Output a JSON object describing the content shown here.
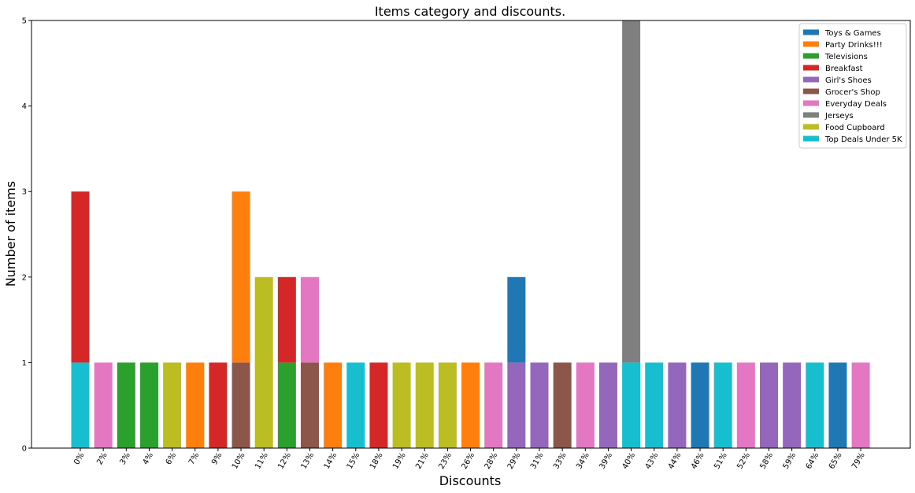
{
  "chart_data": {
    "type": "bar",
    "stacked": true,
    "title": "Items category and discounts.",
    "xlabel": "Discounts",
    "ylabel": "Number of items",
    "ylim": [
      0,
      5
    ],
    "yticks": [
      "0",
      "1",
      "2",
      "3",
      "4",
      "5"
    ],
    "grid": false,
    "legend_position": "top-right",
    "categories": [
      "0%",
      "2%",
      "3%",
      "4%",
      "6%",
      "7%",
      "9%",
      "10%",
      "11%",
      "12%",
      "13%",
      "14%",
      "15%",
      "18%",
      "19%",
      "21%",
      "23%",
      "26%",
      "28%",
      "29%",
      "31%",
      "33%",
      "34%",
      "39%",
      "40%",
      "43%",
      "44%",
      "46%",
      "51%",
      "52%",
      "58%",
      "59%",
      "64%",
      "65%",
      "79%"
    ],
    "series": [
      {
        "name": "Toys & Games",
        "color": "#1f77b4",
        "values": [
          0,
          0,
          0,
          0,
          0,
          0,
          0,
          0,
          0,
          0,
          0,
          0,
          0,
          0,
          0,
          0,
          0,
          0,
          0,
          1,
          0,
          0,
          0,
          0,
          0,
          0,
          0,
          1,
          0,
          0,
          0,
          0,
          0,
          1,
          0
        ]
      },
      {
        "name": "Party Drinks!!!",
        "color": "#ff7f0e",
        "values": [
          0,
          0,
          0,
          0,
          0,
          1,
          0,
          2,
          0,
          0,
          0,
          1,
          0,
          0,
          0,
          0,
          0,
          1,
          0,
          0,
          0,
          0,
          0,
          0,
          0,
          0,
          0,
          0,
          0,
          0,
          0,
          0,
          0,
          0,
          0
        ]
      },
      {
        "name": "Televisions",
        "color": "#2ca02c",
        "values": [
          0,
          0,
          1,
          1,
          0,
          0,
          0,
          0,
          0,
          1,
          0,
          0,
          0,
          0,
          0,
          0,
          0,
          0,
          0,
          0,
          0,
          0,
          0,
          0,
          0,
          0,
          0,
          0,
          0,
          0,
          0,
          0,
          0,
          0,
          0
        ]
      },
      {
        "name": "Breakfast",
        "color": "#d62728",
        "values": [
          2,
          0,
          0,
          0,
          0,
          0,
          1,
          0,
          0,
          1,
          0,
          0,
          0,
          1,
          0,
          0,
          0,
          0,
          0,
          0,
          0,
          0,
          0,
          0,
          0,
          0,
          0,
          0,
          0,
          0,
          0,
          0,
          0,
          0,
          0
        ]
      },
      {
        "name": "Girl's Shoes",
        "color": "#9467bd",
        "values": [
          0,
          0,
          0,
          0,
          0,
          0,
          0,
          0,
          0,
          0,
          0,
          0,
          0,
          0,
          0,
          0,
          0,
          0,
          0,
          1,
          1,
          0,
          0,
          1,
          0,
          0,
          1,
          0,
          0,
          0,
          1,
          1,
          0,
          0,
          0
        ]
      },
      {
        "name": "Grocer's Shop",
        "color": "#8c564b",
        "values": [
          0,
          0,
          0,
          0,
          0,
          0,
          0,
          1,
          0,
          0,
          1,
          0,
          0,
          0,
          0,
          0,
          0,
          0,
          0,
          0,
          0,
          1,
          0,
          0,
          0,
          0,
          0,
          0,
          0,
          0,
          0,
          0,
          0,
          0,
          0
        ]
      },
      {
        "name": "Everyday Deals",
        "color": "#e377c2",
        "values": [
          0,
          1,
          0,
          0,
          0,
          0,
          0,
          0,
          0,
          0,
          1,
          0,
          0,
          0,
          0,
          0,
          0,
          0,
          1,
          0,
          0,
          0,
          1,
          0,
          0,
          0,
          0,
          0,
          0,
          1,
          0,
          0,
          0,
          0,
          1
        ]
      },
      {
        "name": "Jerseys",
        "color": "#7f7f7f",
        "values": [
          0,
          0,
          0,
          0,
          0,
          0,
          0,
          0,
          0,
          0,
          0,
          0,
          0,
          0,
          0,
          0,
          0,
          0,
          0,
          0,
          0,
          0,
          0,
          0,
          4,
          0,
          0,
          0,
          0,
          0,
          0,
          0,
          0,
          0,
          0
        ]
      },
      {
        "name": "Food Cupboard",
        "color": "#bcbd22",
        "values": [
          0,
          0,
          0,
          0,
          1,
          0,
          0,
          0,
          2,
          0,
          0,
          0,
          0,
          0,
          1,
          1,
          1,
          0,
          0,
          0,
          0,
          0,
          0,
          0,
          0,
          0,
          0,
          0,
          0,
          0,
          0,
          0,
          0,
          0,
          0
        ]
      },
      {
        "name": "Top Deals Under 5K",
        "color": "#17becf",
        "values": [
          1,
          0,
          0,
          0,
          0,
          0,
          0,
          0,
          0,
          0,
          0,
          0,
          1,
          0,
          0,
          0,
          0,
          0,
          0,
          0,
          0,
          0,
          0,
          0,
          1,
          1,
          0,
          0,
          1,
          0,
          0,
          0,
          1,
          0,
          0
        ]
      }
    ],
    "stack_order": [
      [
        9,
        3
      ],
      [
        6
      ],
      [
        2
      ],
      [
        2
      ],
      [
        8
      ],
      [
        1
      ],
      [
        3
      ],
      [
        5,
        1
      ],
      [
        8
      ],
      [
        2,
        3
      ],
      [
        5,
        6
      ],
      [
        1
      ],
      [
        9
      ],
      [
        3
      ],
      [
        8
      ],
      [
        8
      ],
      [
        8
      ],
      [
        1
      ],
      [
        6
      ],
      [
        4,
        0
      ],
      [
        4
      ],
      [
        5
      ],
      [
        6
      ],
      [
        4
      ],
      [
        9,
        7
      ],
      [
        9
      ],
      [
        4
      ],
      [
        0
      ],
      [
        9
      ],
      [
        6
      ],
      [
        4
      ],
      [
        4
      ],
      [
        9
      ],
      [
        0
      ],
      [
        6
      ]
    ]
  }
}
